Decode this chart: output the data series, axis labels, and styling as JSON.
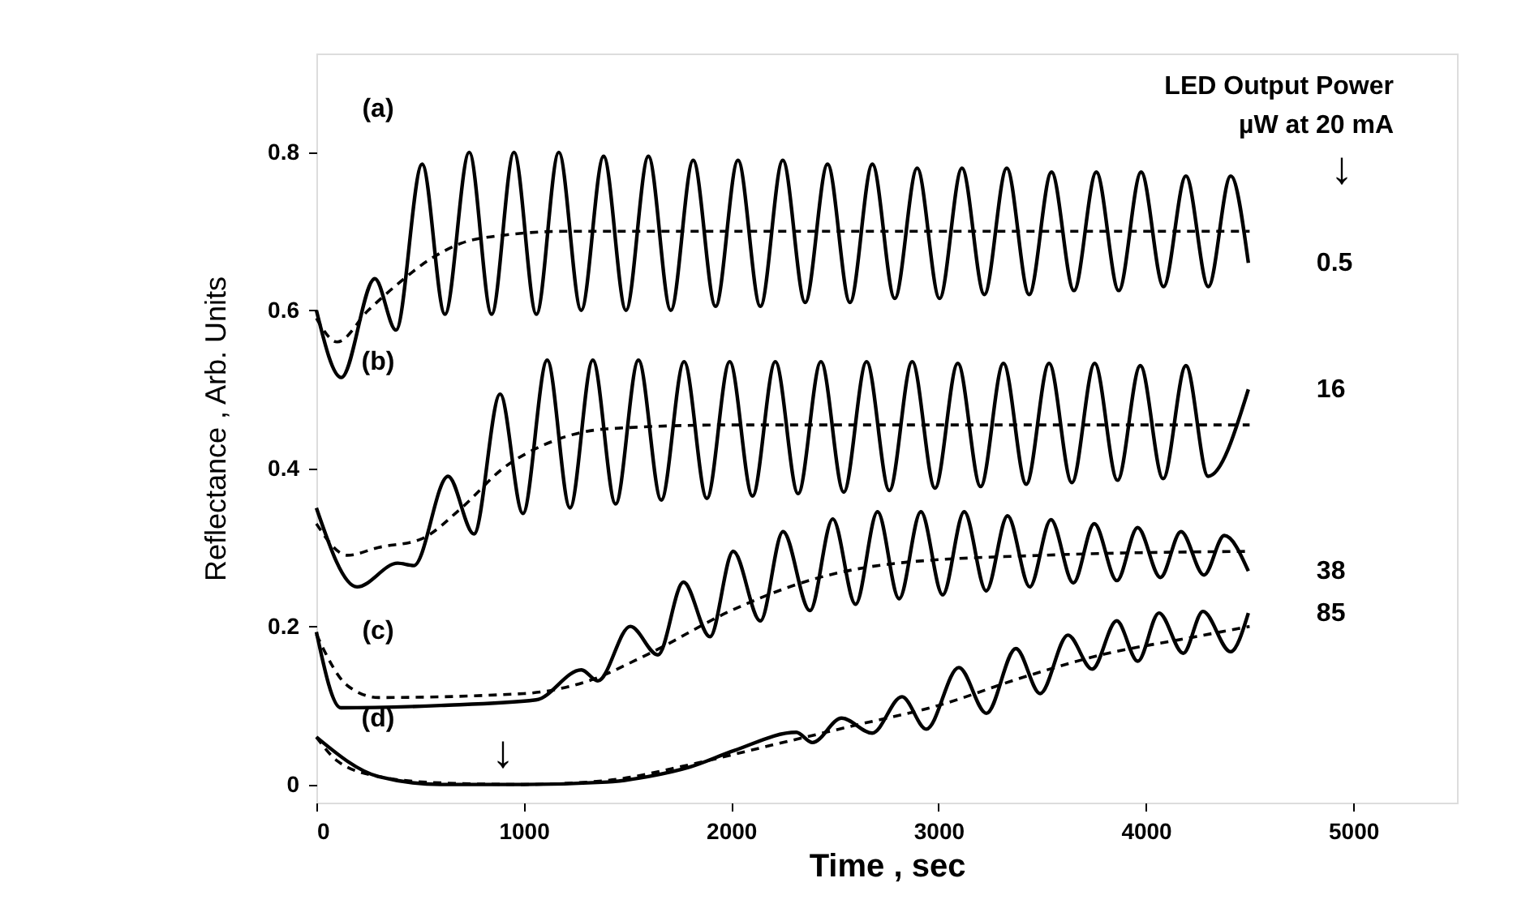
{
  "chart_data": {
    "type": "line",
    "xlabel": "Time , sec",
    "ylabel": "Reflectance , Arb. Units",
    "xlim": [
      0,
      5500
    ],
    "xticks": [
      0,
      1000,
      2000,
      3000,
      4000,
      5000
    ],
    "ylim": [
      -0.023,
      0.925
    ],
    "yticks": [
      0,
      0.2,
      0.4,
      0.6,
      0.8
    ],
    "grid": false,
    "marker": "none",
    "series": [
      {
        "name": "0.5",
        "color": "#000000",
        "line_style": "solid",
        "x": [
          0,
          120,
          282,
          384,
          510,
          620,
          737,
          845,
          953,
          1061,
          1169,
          1277,
          1385,
          1493,
          1601,
          1709,
          1817,
          1925,
          2033,
          2141,
          2249,
          2357,
          2465,
          2573,
          2681,
          2789,
          2897,
          3005,
          3113,
          3221,
          3329,
          3437,
          3545,
          3653,
          3761,
          3869,
          3977,
          4085,
          4193,
          4301,
          4409,
          4494
        ],
        "values": [
          0.6,
          0.515,
          0.64,
          0.575,
          0.785,
          0.595,
          0.8,
          0.595,
          0.8,
          0.595,
          0.8,
          0.6,
          0.795,
          0.6,
          0.795,
          0.6,
          0.79,
          0.605,
          0.79,
          0.605,
          0.79,
          0.61,
          0.785,
          0.61,
          0.785,
          0.615,
          0.78,
          0.615,
          0.78,
          0.62,
          0.78,
          0.62,
          0.775,
          0.625,
          0.775,
          0.625,
          0.775,
          0.63,
          0.77,
          0.63,
          0.77,
          0.66
        ]
      },
      {
        "color": "#000000",
        "line_style": "dashed",
        "x": [
          0,
          100,
          250,
          400,
          550,
          700,
          900,
          1200,
          4500
        ],
        "values": [
          0.59,
          0.56,
          0.6,
          0.635,
          0.665,
          0.685,
          0.695,
          0.7,
          0.7
        ]
      },
      {
        "name": "16",
        "color": "#000000",
        "line_style": "solid",
        "x": [
          0,
          196,
          392,
          470,
          635,
          760,
          886,
          996,
          1113,
          1223,
          1333,
          1443,
          1553,
          1663,
          1773,
          1883,
          1993,
          2103,
          2213,
          2323,
          2433,
          2543,
          2653,
          2763,
          2873,
          2983,
          3093,
          3203,
          3313,
          3423,
          3533,
          3643,
          3753,
          3863,
          3973,
          4083,
          4193,
          4300,
          4494
        ],
        "values": [
          0.35,
          0.25,
          0.28,
          0.277,
          0.39,
          0.317,
          0.494,
          0.343,
          0.537,
          0.35,
          0.537,
          0.355,
          0.537,
          0.36,
          0.535,
          0.362,
          0.535,
          0.365,
          0.535,
          0.368,
          0.535,
          0.37,
          0.535,
          0.372,
          0.535,
          0.375,
          0.533,
          0.377,
          0.533,
          0.38,
          0.533,
          0.382,
          0.533,
          0.385,
          0.53,
          0.387,
          0.53,
          0.39,
          0.5
        ]
      },
      {
        "color": "#000000",
        "line_style": "dashed",
        "x": [
          0,
          150,
          300,
          500,
          700,
          900,
          1100,
          1400,
          2000,
          4500
        ],
        "values": [
          0.33,
          0.29,
          0.3,
          0.31,
          0.35,
          0.4,
          0.43,
          0.45,
          0.455,
          0.455
        ]
      },
      {
        "name": "38",
        "color": "#000000",
        "line_style": "solid",
        "x": [
          0,
          118,
          600,
          1059,
          1278,
          1357,
          1514,
          1647,
          1770,
          1898,
          2010,
          2141,
          2250,
          2380,
          2490,
          2600,
          2706,
          2810,
          2915,
          3020,
          3124,
          3230,
          3333,
          3440,
          3542,
          3650,
          3751,
          3860,
          3960,
          4070,
          4169,
          4280,
          4378,
          4494
        ],
        "values": [
          0.193,
          0.097,
          0.1,
          0.107,
          0.145,
          0.131,
          0.2,
          0.164,
          0.256,
          0.187,
          0.295,
          0.207,
          0.32,
          0.22,
          0.336,
          0.228,
          0.345,
          0.235,
          0.345,
          0.24,
          0.345,
          0.245,
          0.34,
          0.25,
          0.335,
          0.255,
          0.33,
          0.258,
          0.325,
          0.262,
          0.32,
          0.265,
          0.315,
          0.27
        ]
      },
      {
        "color": "#000000",
        "line_style": "dashed",
        "x": [
          0,
          150,
          300,
          1000,
          1300,
          1600,
          2000,
          2400,
          2800,
          3500,
          4500
        ],
        "values": [
          0.19,
          0.125,
          0.11,
          0.115,
          0.13,
          0.165,
          0.22,
          0.26,
          0.28,
          0.29,
          0.295
        ]
      },
      {
        "name": "85",
        "color": "#000000",
        "line_style": "solid",
        "x": [
          0,
          300,
          600,
          1000,
          1400,
          1600,
          1800,
          2016,
          2314,
          2392,
          2533,
          2680,
          2824,
          2941,
          3098,
          3231,
          3373,
          3490,
          3624,
          3741,
          3859,
          3961,
          4063,
          4180,
          4275,
          4408,
          4494
        ],
        "values": [
          0.06,
          0.01,
          0.0,
          0.0,
          0.003,
          0.01,
          0.022,
          0.043,
          0.066,
          0.053,
          0.084,
          0.065,
          0.111,
          0.07,
          0.148,
          0.09,
          0.172,
          0.115,
          0.189,
          0.146,
          0.207,
          0.156,
          0.217,
          0.166,
          0.219,
          0.168,
          0.217
        ]
      },
      {
        "color": "#000000",
        "line_style": "dashed",
        "x": [
          0,
          100,
          300,
          600,
          1000,
          1400,
          1800,
          2200,
          2600,
          3000,
          3400,
          3800,
          4200,
          4500
        ],
        "values": [
          0.06,
          0.03,
          0.01,
          0.002,
          0.0,
          0.005,
          0.025,
          0.05,
          0.075,
          0.1,
          0.135,
          0.165,
          0.185,
          0.2
        ]
      }
    ],
    "annotations": [
      "(a)",
      "(b)",
      "(c)",
      "(d)",
      "LED Output Power",
      "µW at 20 mA",
      "↓",
      "↓"
    ]
  }
}
